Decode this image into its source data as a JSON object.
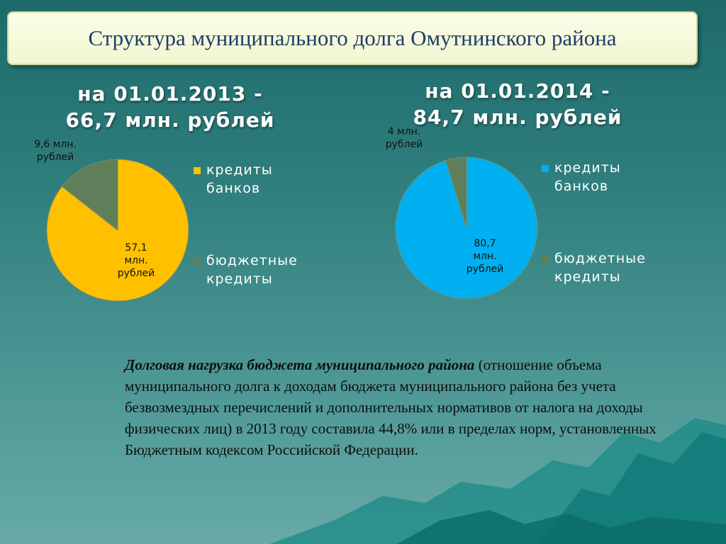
{
  "title": "Структура муниципального долга Омутнинского района",
  "chart_data": [
    {
      "type": "pie",
      "title_lines": [
        "на 01.01.2013 -",
        "66,7 млн. рублей"
      ],
      "series": [
        {
          "name": "кредиты банков",
          "value": 57.1,
          "label_lines": [
            "57,1",
            "млн.",
            "рублей"
          ],
          "color": "#ffc000"
        },
        {
          "name": "бюджетные кредиты",
          "value": 9.6,
          "label_lines": [
            "9,6 млн.",
            "рублей"
          ],
          "color": "#5f7f5a"
        }
      ],
      "legend": {
        "position": "right",
        "items": [
          {
            "lines": [
              "кредиты",
              "банков"
            ],
            "color": "#ffc000"
          },
          {
            "lines": [
              "бюджетные",
              "кредиты"
            ],
            "color": "#5f7f5a"
          }
        ]
      }
    },
    {
      "type": "pie",
      "title_lines": [
        "на 01.01.2014 -",
        "84,7 млн. рублей"
      ],
      "series": [
        {
          "name": "кредиты банков",
          "value": 80.7,
          "label_lines": [
            "80,7",
            "млн.",
            "рублей"
          ],
          "color": "#00b0f0"
        },
        {
          "name": "бюджетные кредиты",
          "value": 4,
          "label_lines": [
            "4 млн.",
            "рублей"
          ],
          "color": "#5f7f5a"
        }
      ],
      "legend": {
        "position": "right",
        "items": [
          {
            "lines": [
              "кредиты",
              "банков"
            ],
            "color": "#00b0f0"
          },
          {
            "lines": [
              "бюджетные",
              "кредиты"
            ],
            "color": "#5f7f5a"
          }
        ]
      }
    }
  ],
  "body": {
    "lead": "Долговая нагрузка бюджета муниципального района",
    "text": " (отношение объема муниципального долга к доходам бюджета муниципального района без учета безвозмездных перечислений и дополнительных нормативов от налога на доходы физических лиц) в 2013 году составила 44,8%  или в пределах норм, установленных Бюджетным кодексом Российской Федерации."
  }
}
